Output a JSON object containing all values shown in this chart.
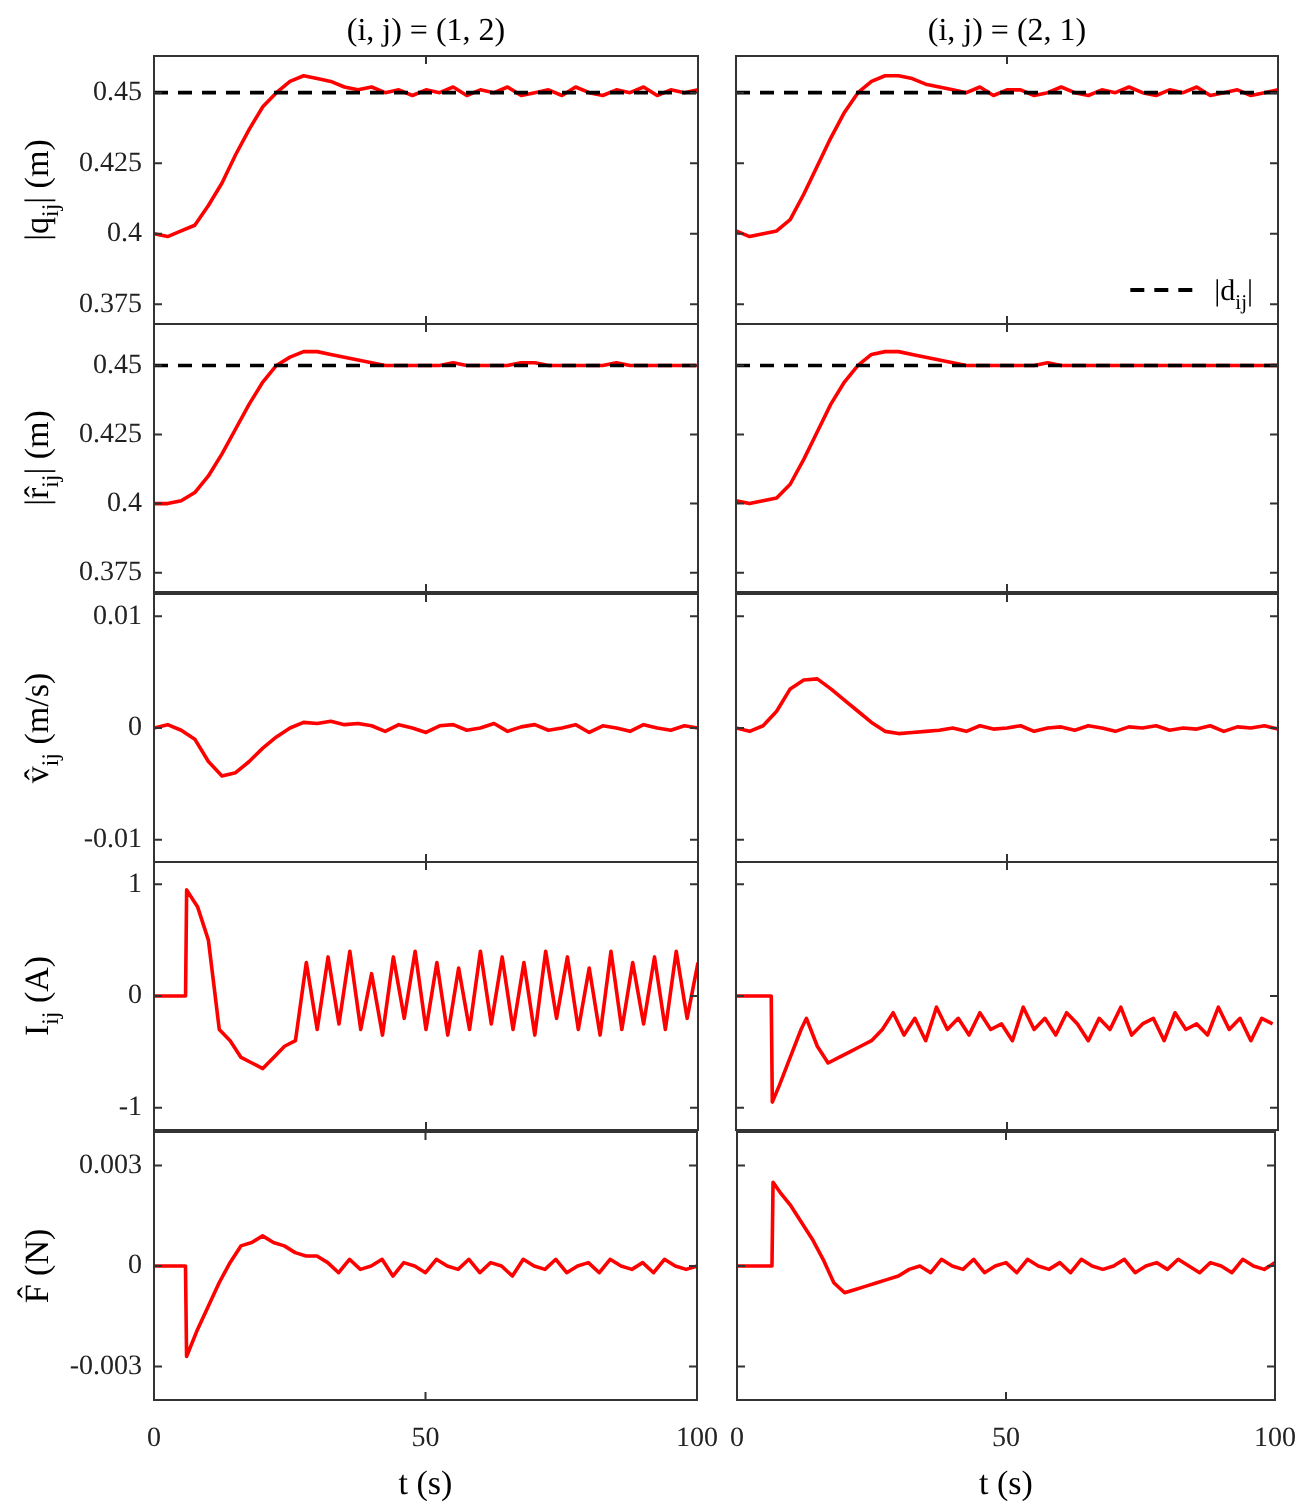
{
  "chart_data": [
    {
      "type": "line",
      "title": "(i, j) = (1, 2)",
      "ylabel": "|q$_{ij}$| (m)",
      "xlim": [
        0,
        100
      ],
      "xticks": [
        0,
        50,
        100
      ],
      "ylim": [
        0.368,
        0.463
      ],
      "yticks": [
        0.375,
        0.4,
        0.425,
        0.45
      ],
      "tick_labels": "y",
      "series": [
        {
          "color": "#000000",
          "line_style": "dashed",
          "x": [
            0,
            100
          ],
          "values": [
            0.45,
            0.45
          ]
        },
        {
          "color": "#ff0000",
          "x": [
            0,
            2.5,
            5,
            7.5,
            10,
            12.5,
            15,
            17.5,
            20,
            22.5,
            25,
            27.5,
            30,
            32.5,
            35,
            37.5,
            40,
            42.5,
            45,
            47.5,
            50,
            52.5,
            55,
            57.5,
            60,
            62.5,
            65,
            67.5,
            70,
            72.5,
            75,
            77.5,
            80,
            82.5,
            85,
            87.5,
            90,
            92.5,
            95,
            97.5,
            100
          ],
          "values": [
            0.4,
            0.399,
            0.401,
            0.403,
            0.41,
            0.418,
            0.428,
            0.437,
            0.445,
            0.45,
            0.454,
            0.456,
            0.455,
            0.454,
            0.452,
            0.451,
            0.452,
            0.45,
            0.451,
            0.449,
            0.451,
            0.45,
            0.452,
            0.449,
            0.451,
            0.45,
            0.452,
            0.449,
            0.45,
            0.451,
            0.449,
            0.452,
            0.45,
            0.449,
            0.451,
            0.45,
            0.452,
            0.449,
            0.451,
            0.45,
            0.451
          ]
        }
      ]
    },
    {
      "type": "line",
      "title": "(i, j) = (2, 1)",
      "xlim": [
        0,
        100
      ],
      "xticks": [
        0,
        50,
        100
      ],
      "ylim": [
        0.368,
        0.463
      ],
      "yticks": [
        0.375,
        0.4,
        0.425,
        0.45
      ],
      "tick_labels": false,
      "legend": "bottom right",
      "series": [
        {
          "name": "|d$_{ij}$|",
          "color": "#000000",
          "line_style": "dashed",
          "x": [
            0,
            100
          ],
          "values": [
            0.45,
            0.45
          ]
        },
        {
          "color": "#ff0000",
          "x": [
            0,
            2.5,
            5,
            7.5,
            10,
            12.5,
            15,
            17.5,
            20,
            22.5,
            25,
            27.5,
            30,
            32.5,
            35,
            37.5,
            40,
            42.5,
            45,
            47.5,
            50,
            52.5,
            55,
            57.5,
            60,
            62.5,
            65,
            67.5,
            70,
            72.5,
            75,
            77.5,
            80,
            82.5,
            85,
            87.5,
            90,
            92.5,
            95,
            97.5,
            100
          ],
          "values": [
            0.401,
            0.399,
            0.4,
            0.401,
            0.405,
            0.414,
            0.424,
            0.434,
            0.443,
            0.45,
            0.454,
            0.456,
            0.456,
            0.455,
            0.453,
            0.452,
            0.451,
            0.45,
            0.452,
            0.449,
            0.451,
            0.451,
            0.449,
            0.45,
            0.452,
            0.45,
            0.449,
            0.451,
            0.45,
            0.452,
            0.45,
            0.449,
            0.451,
            0.45,
            0.452,
            0.449,
            0.45,
            0.451,
            0.449,
            0.45,
            0.451
          ]
        }
      ]
    },
    {
      "type": "line",
      "ylabel": "|r̂$_{ij}$| (m)",
      "xlim": [
        0,
        100
      ],
      "xticks": [
        0,
        50,
        100
      ],
      "ylim": [
        0.368,
        0.465
      ],
      "yticks": [
        0.375,
        0.4,
        0.425,
        0.45
      ],
      "tick_labels": "y",
      "series": [
        {
          "color": "#000000",
          "line_style": "dashed",
          "x": [
            0,
            100
          ],
          "values": [
            0.45,
            0.45
          ]
        },
        {
          "color": "#ff0000",
          "x": [
            0,
            2.5,
            5,
            7.5,
            10,
            12.5,
            15,
            17.5,
            20,
            22.5,
            25,
            27.5,
            30,
            32.5,
            35,
            37.5,
            40,
            42.5,
            45,
            47.5,
            50,
            52.5,
            55,
            57.5,
            60,
            62.5,
            65,
            67.5,
            70,
            72.5,
            75,
            77.5,
            80,
            82.5,
            85,
            87.5,
            90,
            92.5,
            95,
            97.5,
            100
          ],
          "values": [
            0.4,
            0.4,
            0.401,
            0.404,
            0.41,
            0.418,
            0.427,
            0.436,
            0.444,
            0.45,
            0.453,
            0.455,
            0.455,
            0.454,
            0.453,
            0.452,
            0.451,
            0.45,
            0.45,
            0.45,
            0.45,
            0.45,
            0.451,
            0.45,
            0.45,
            0.45,
            0.45,
            0.451,
            0.451,
            0.45,
            0.45,
            0.45,
            0.45,
            0.45,
            0.451,
            0.45,
            0.45,
            0.45,
            0.45,
            0.45,
            0.45
          ]
        }
      ]
    },
    {
      "type": "line",
      "xlim": [
        0,
        100
      ],
      "xticks": [
        0,
        50,
        100
      ],
      "ylim": [
        0.368,
        0.465
      ],
      "yticks": [
        0.375,
        0.4,
        0.425,
        0.45
      ],
      "tick_labels": false,
      "series": [
        {
          "color": "#000000",
          "line_style": "dashed",
          "x": [
            0,
            100
          ],
          "values": [
            0.45,
            0.45
          ]
        },
        {
          "color": "#ff0000",
          "x": [
            0,
            2.5,
            5,
            7.5,
            10,
            12.5,
            15,
            17.5,
            20,
            22.5,
            25,
            27.5,
            30,
            32.5,
            35,
            37.5,
            40,
            42.5,
            45,
            47.5,
            50,
            52.5,
            55,
            57.5,
            60,
            62.5,
            65,
            67.5,
            70,
            72.5,
            75,
            77.5,
            80,
            82.5,
            85,
            87.5,
            90,
            92.5,
            95,
            97.5,
            100
          ],
          "values": [
            0.401,
            0.4,
            0.401,
            0.402,
            0.407,
            0.416,
            0.426,
            0.436,
            0.444,
            0.45,
            0.454,
            0.455,
            0.455,
            0.454,
            0.453,
            0.452,
            0.451,
            0.45,
            0.45,
            0.45,
            0.45,
            0.45,
            0.45,
            0.451,
            0.45,
            0.45,
            0.45,
            0.45,
            0.45,
            0.45,
            0.45,
            0.45,
            0.45,
            0.45,
            0.45,
            0.45,
            0.45,
            0.45,
            0.45,
            0.45,
            0.45
          ]
        }
      ]
    },
    {
      "type": "line",
      "ylabel": "v̂$_{ij}$ (m/s)",
      "xlim": [
        0,
        100
      ],
      "xticks": [
        0,
        50,
        100
      ],
      "ylim": [
        -0.012,
        0.012
      ],
      "yticks": [
        -0.01,
        0,
        0.01
      ],
      "tick_labels": "y",
      "series": [
        {
          "color": "#ff0000",
          "x": [
            0,
            2.5,
            5,
            7.5,
            10,
            12.5,
            15,
            17.5,
            20,
            22.5,
            25,
            27.5,
            30,
            32.5,
            35,
            37.5,
            40,
            42.5,
            45,
            47.5,
            50,
            52.5,
            55,
            57.5,
            60,
            62.5,
            65,
            67.5,
            70,
            72.5,
            75,
            77.5,
            80,
            82.5,
            85,
            87.5,
            90,
            92.5,
            95,
            97.5,
            100
          ],
          "values": [
            0,
            0.0003,
            -0.0002,
            -0.001,
            -0.003,
            -0.0043,
            -0.004,
            -0.003,
            -0.0018,
            -0.0008,
            0,
            0.0005,
            0.0004,
            0.0006,
            0.0003,
            0.0004,
            0.0002,
            -0.0003,
            0.0003,
            0,
            -0.0004,
            0.0002,
            0.0003,
            -0.0002,
            0,
            0.0004,
            -0.0003,
            0.0001,
            0.0003,
            -0.0002,
            0,
            0.0003,
            -0.0004,
            0.0002,
            0,
            -0.0003,
            0.0003,
            0,
            -0.0002,
            0.0002,
            0
          ]
        }
      ]
    },
    {
      "type": "line",
      "xlim": [
        0,
        100
      ],
      "xticks": [
        0,
        50,
        100
      ],
      "ylim": [
        -0.012,
        0.012
      ],
      "yticks": [
        -0.01,
        0,
        0.01
      ],
      "tick_labels": false,
      "series": [
        {
          "color": "#ff0000",
          "x": [
            0,
            2.5,
            5,
            7.5,
            10,
            12.5,
            15,
            17.5,
            20,
            22.5,
            25,
            27.5,
            30,
            32.5,
            35,
            37.5,
            40,
            42.5,
            45,
            47.5,
            50,
            52.5,
            55,
            57.5,
            60,
            62.5,
            65,
            67.5,
            70,
            72.5,
            75,
            77.5,
            80,
            82.5,
            85,
            87.5,
            90,
            92.5,
            95,
            97.5,
            100
          ],
          "values": [
            0,
            -0.0003,
            0.0002,
            0.0015,
            0.0035,
            0.0043,
            0.0044,
            0.0035,
            0.0025,
            0.0015,
            0.0005,
            -0.0003,
            -0.0005,
            -0.0004,
            -0.0003,
            -0.0002,
            0,
            -0.0003,
            0.0002,
            -0.0001,
            0,
            0.0002,
            -0.0003,
            0,
            0.0001,
            -0.0002,
            0.0002,
            0,
            -0.0003,
            0.0001,
            0,
            0.0002,
            -0.0002,
            0,
            -0.0001,
            0.0002,
            -0.0003,
            0.0001,
            0,
            0.0002,
            -0.0001
          ]
        }
      ]
    },
    {
      "type": "line",
      "ylabel": "I$_{ij}$ (A)",
      "xlim": [
        0,
        100
      ],
      "xticks": [
        0,
        50,
        100
      ],
      "ylim": [
        -1.2,
        1.2
      ],
      "yticks": [
        -1,
        0,
        1
      ],
      "tick_labels": "y",
      "series": [
        {
          "color": "#ff0000",
          "x": [
            0,
            5.8,
            6,
            8,
            10,
            11,
            12,
            14,
            16,
            18,
            20,
            22,
            24,
            26,
            28,
            30,
            32,
            34,
            36,
            38,
            40,
            42,
            44,
            46,
            48,
            50,
            52,
            54,
            56,
            58,
            60,
            62,
            64,
            66,
            68,
            70,
            72,
            74,
            76,
            78,
            80,
            82,
            84,
            86,
            88,
            90,
            92,
            94,
            96,
            98,
            100
          ],
          "values": [
            0,
            0,
            0.95,
            0.8,
            0.5,
            0.1,
            -0.3,
            -0.4,
            -0.55,
            -0.6,
            -0.65,
            -0.55,
            -0.45,
            -0.4,
            0.3,
            -0.3,
            0.35,
            -0.25,
            0.4,
            -0.3,
            0.2,
            -0.35,
            0.35,
            -0.2,
            0.4,
            -0.3,
            0.3,
            -0.35,
            0.25,
            -0.3,
            0.4,
            -0.25,
            0.35,
            -0.3,
            0.3,
            -0.35,
            0.4,
            -0.2,
            0.35,
            -0.3,
            0.25,
            -0.35,
            0.4,
            -0.3,
            0.3,
            -0.25,
            0.35,
            -0.3,
            0.4,
            -0.2,
            0.3
          ]
        }
      ]
    },
    {
      "type": "line",
      "xlim": [
        0,
        100
      ],
      "xticks": [
        0,
        50,
        100
      ],
      "ylim": [
        -1.2,
        1.2
      ],
      "yticks": [
        -1,
        0,
        1
      ],
      "tick_labels": false,
      "series": [
        {
          "color": "#ff0000",
          "x": [
            0,
            6.5,
            6.7,
            8,
            10,
            12,
            13,
            15,
            17,
            19,
            21,
            23,
            25,
            27,
            29,
            31,
            33,
            35,
            37,
            39,
            41,
            43,
            45,
            47,
            49,
            51,
            53,
            55,
            57,
            59,
            61,
            63,
            65,
            67,
            69,
            71,
            73,
            75,
            77,
            79,
            81,
            83,
            85,
            87,
            89,
            91,
            93,
            95,
            97,
            99
          ],
          "values": [
            0,
            0,
            -0.95,
            -0.8,
            -0.55,
            -0.3,
            -0.2,
            -0.45,
            -0.6,
            -0.55,
            -0.5,
            -0.45,
            -0.4,
            -0.3,
            -0.15,
            -0.35,
            -0.2,
            -0.4,
            -0.1,
            -0.3,
            -0.2,
            -0.35,
            -0.15,
            -0.3,
            -0.25,
            -0.4,
            -0.1,
            -0.3,
            -0.2,
            -0.35,
            -0.15,
            -0.25,
            -0.4,
            -0.2,
            -0.3,
            -0.1,
            -0.35,
            -0.25,
            -0.2,
            -0.4,
            -0.15,
            -0.3,
            -0.25,
            -0.35,
            -0.1,
            -0.3,
            -0.2,
            -0.4,
            -0.2,
            -0.25
          ]
        }
      ]
    },
    {
      "type": "line",
      "ylabel": "F̂ (N)",
      "xlabel": "t (s)",
      "xlim": [
        0,
        100
      ],
      "xticks": [
        0,
        50,
        100
      ],
      "ylim": [
        -0.004,
        0.004
      ],
      "yticks": [
        -0.003,
        0,
        0.003
      ],
      "series": [
        {
          "color": "#ff0000",
          "x": [
            0,
            5.8,
            6,
            8,
            10,
            12,
            14,
            16,
            18,
            20,
            22,
            24,
            26,
            28,
            30,
            32,
            34,
            36,
            38,
            40,
            42,
            44,
            46,
            48,
            50,
            52,
            54,
            56,
            58,
            60,
            62,
            64,
            66,
            68,
            70,
            72,
            74,
            76,
            78,
            80,
            82,
            84,
            86,
            88,
            90,
            92,
            94,
            96,
            98,
            100
          ],
          "values": [
            0,
            0,
            -0.0027,
            -0.0019,
            -0.0012,
            -0.0005,
            0.0001,
            0.0006,
            0.0007,
            0.0009,
            0.0007,
            0.0006,
            0.0004,
            0.0003,
            0.0003,
            0.0001,
            -0.0002,
            0.0002,
            -0.0001,
            0,
            0.0002,
            -0.0003,
            0.0001,
            0,
            -0.0002,
            0.0002,
            0,
            -0.0001,
            0.0002,
            -0.0002,
            0.0001,
            0,
            -0.0003,
            0.0002,
            0,
            -0.0001,
            0.0002,
            -0.0002,
            0,
            0.0001,
            -0.0002,
            0.0002,
            0,
            -0.0001,
            0.0001,
            -0.0002,
            0.0002,
            0,
            -0.0001,
            0
          ]
        }
      ]
    },
    {
      "type": "line",
      "xlabel": "t (s)",
      "xlim": [
        0,
        100
      ],
      "xticks": [
        0,
        50,
        100
      ],
      "ylim": [
        -0.004,
        0.004
      ],
      "yticks": [
        -0.003,
        0,
        0.003
      ],
      "tick_labels": "x",
      "series": [
        {
          "color": "#ff0000",
          "x": [
            0,
            6.5,
            6.7,
            8,
            10,
            12,
            14,
            16,
            18,
            20,
            22,
            24,
            26,
            28,
            30,
            32,
            34,
            36,
            38,
            40,
            42,
            44,
            46,
            48,
            50,
            52,
            54,
            56,
            58,
            60,
            62,
            64,
            66,
            68,
            70,
            72,
            74,
            76,
            78,
            80,
            82,
            84,
            86,
            88,
            90,
            92,
            94,
            96,
            98,
            100
          ],
          "values": [
            0,
            0,
            0.0025,
            0.0022,
            0.0018,
            0.0013,
            0.0008,
            0.0002,
            -0.0005,
            -0.0008,
            -0.0007,
            -0.0006,
            -0.0005,
            -0.0004,
            -0.0003,
            -0.0001,
            0,
            -0.0002,
            0.0002,
            0,
            -0.0001,
            0.0002,
            -0.0002,
            0,
            0.0001,
            -0.0002,
            0.0002,
            0,
            -0.0001,
            0.0001,
            -0.0002,
            0.0002,
            0,
            -0.0001,
            0,
            0.0002,
            -0.0002,
            0,
            0.0001,
            -0.0001,
            0.0002,
            0,
            -0.0002,
            0.0001,
            0,
            -0.0002,
            0.0002,
            0,
            -0.0001,
            0.0001
          ]
        }
      ]
    }
  ]
}
